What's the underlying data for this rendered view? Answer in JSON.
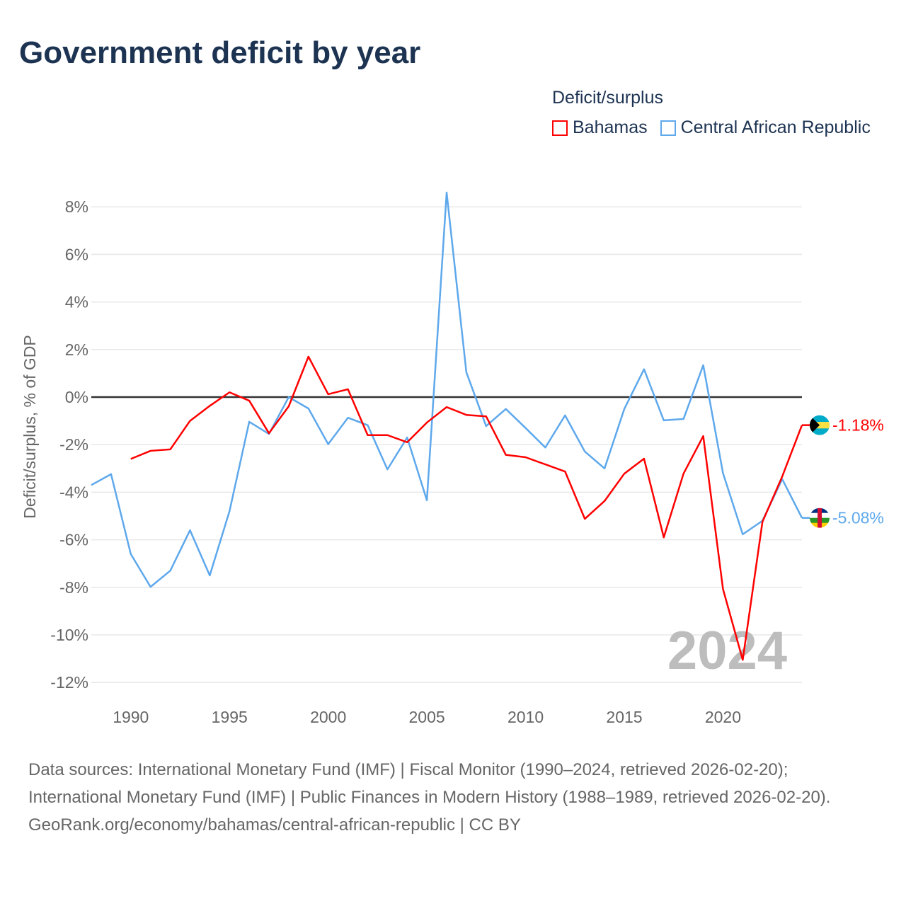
{
  "title": "Government deficit by year",
  "legend": {
    "title": "Deficit/surplus"
  },
  "footer": {
    "sources": "Data sources: International Monetary Fund (IMF) | Fiscal Monitor (1990–2024, retrieved 2026-02-20); International Monetary Fund (IMF) | Public Finances in Modern History (1988–1989, retrieved 2026-02-20).",
    "credit": "GeoRank.org/economy/bahamas/central-african-republic | CC BY"
  },
  "chart_data": {
    "type": "line",
    "title": "Government deficit by year",
    "xlabel": "",
    "ylabel": "Deficit/surplus, % of GDP",
    "xlim": [
      1988,
      2024
    ],
    "ylim": [
      -12,
      8
    ],
    "xticks": [
      1990,
      1995,
      2000,
      2005,
      2010,
      2015,
      2020
    ],
    "yticks": [
      8,
      6,
      4,
      2,
      0,
      -2,
      -4,
      -6,
      -8,
      -10,
      -12
    ],
    "grid": true,
    "legend_position": "top-right",
    "watermark": "2024",
    "series": [
      {
        "name": "Bahamas",
        "color": "#ff0000",
        "end_label": "-1.18%",
        "x": [
          1990,
          1991,
          1992,
          1993,
          1994,
          1995,
          1996,
          1997,
          1998,
          1999,
          2000,
          2001,
          2002,
          2003,
          2004,
          2005,
          2006,
          2007,
          2008,
          2009,
          2010,
          2011,
          2012,
          2013,
          2014,
          2015,
          2016,
          2017,
          2018,
          2019,
          2020,
          2021,
          2022,
          2023,
          2024
        ],
        "values": [
          -2.6,
          -2.26,
          -2.2,
          -1.0,
          -0.37,
          0.2,
          -0.15,
          -1.52,
          -0.39,
          1.7,
          0.12,
          0.33,
          -1.6,
          -1.6,
          -1.9,
          -1.07,
          -0.42,
          -0.75,
          -0.81,
          -2.43,
          -2.53,
          -2.83,
          -3.13,
          -5.12,
          -4.37,
          -3.22,
          -2.59,
          -5.9,
          -3.22,
          -1.64,
          -8.07,
          -11.05,
          -5.24,
          -3.34,
          -1.18
        ]
      },
      {
        "name": "Central African Republic",
        "color": "#5ea8ec",
        "end_label": "-5.08%",
        "x": [
          1988,
          1989,
          1990,
          1991,
          1992,
          1993,
          1994,
          1995,
          1996,
          1997,
          1998,
          1999,
          2000,
          2001,
          2002,
          2003,
          2004,
          2005,
          2006,
          2007,
          2008,
          2009,
          2010,
          2011,
          2012,
          2013,
          2014,
          2015,
          2016,
          2017,
          2018,
          2019,
          2020,
          2021,
          2022,
          2023,
          2024
        ],
        "values": [
          -3.7,
          -3.24,
          -6.6,
          -7.98,
          -7.3,
          -5.6,
          -7.5,
          -4.8,
          -1.04,
          -1.55,
          0.0,
          -0.48,
          -1.98,
          -0.87,
          -1.18,
          -3.04,
          -1.7,
          -4.34,
          8.6,
          1.04,
          -1.22,
          -0.5,
          -1.3,
          -2.12,
          -0.77,
          -2.29,
          -3.0,
          -0.5,
          1.17,
          -0.98,
          -0.92,
          1.34,
          -3.2,
          -5.77,
          -5.2,
          -3.45,
          -5.08
        ]
      }
    ]
  }
}
